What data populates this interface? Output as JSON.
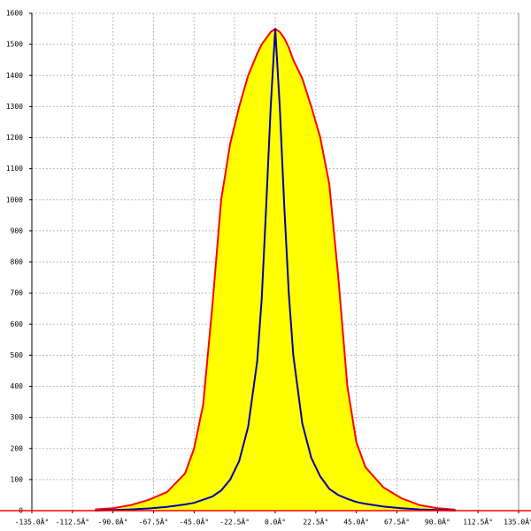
{
  "chart_data": {
    "type": "line",
    "x": [
      -100,
      -90,
      -80,
      -70,
      -60,
      -50,
      -45,
      -40,
      -35,
      -30,
      -25,
      -20,
      -15,
      -10,
      -7.5,
      -5,
      -2.5,
      0,
      2.5,
      5,
      7.5,
      10,
      15,
      20,
      25,
      30,
      35,
      40,
      45,
      50,
      60,
      70,
      80,
      90,
      100
    ],
    "series": [
      {
        "color": "#ff0000",
        "fill": "#ffff00",
        "values": [
          4,
          8,
          18,
          35,
          60,
          120,
          200,
          340,
          650,
          1000,
          1180,
          1300,
          1400,
          1470,
          1500,
          1520,
          1540,
          1550,
          1540,
          1520,
          1490,
          1450,
          1390,
          1300,
          1200,
          1050,
          750,
          400,
          220,
          140,
          75,
          40,
          18,
          8,
          3
        ]
      },
      {
        "color": "#0000aa",
        "values": [
          0,
          2,
          4,
          7,
          12,
          20,
          25,
          35,
          45,
          65,
          100,
          160,
          270,
          480,
          680,
          980,
          1300,
          1550,
          1300,
          980,
          700,
          500,
          280,
          170,
          110,
          70,
          50,
          38,
          28,
          22,
          13,
          8,
          4,
          2,
          0
        ]
      }
    ],
    "xlim": [
      -135,
      135
    ],
    "xticks": [
      {
        "value": -135,
        "label": "-135.0Â°"
      },
      {
        "value": -112.5,
        "label": "-112.5Â°"
      },
      {
        "value": -90,
        "label": "-90.0Â°"
      },
      {
        "value": -67.5,
        "label": "-67.5Â°"
      },
      {
        "value": -45,
        "label": "-45.0Â°"
      },
      {
        "value": -22.5,
        "label": "-22.5Â°"
      },
      {
        "value": 0,
        "label": "0.0Â°"
      },
      {
        "value": 22.5,
        "label": "22.5Â°"
      },
      {
        "value": 45,
        "label": "45.0Â°"
      },
      {
        "value": 67.5,
        "label": "67.5Â°"
      },
      {
        "value": 90,
        "label": "90.0Â°"
      },
      {
        "value": 112.5,
        "label": "112.5Â°"
      },
      {
        "value": 135,
        "label": "135.0Â°"
      }
    ],
    "ylim": [
      0,
      1600
    ],
    "yticks": [
      0,
      100,
      200,
      300,
      400,
      500,
      600,
      700,
      800,
      900,
      1000,
      1100,
      1200,
      1300,
      1400,
      1500,
      1600
    ],
    "grid": true
  }
}
